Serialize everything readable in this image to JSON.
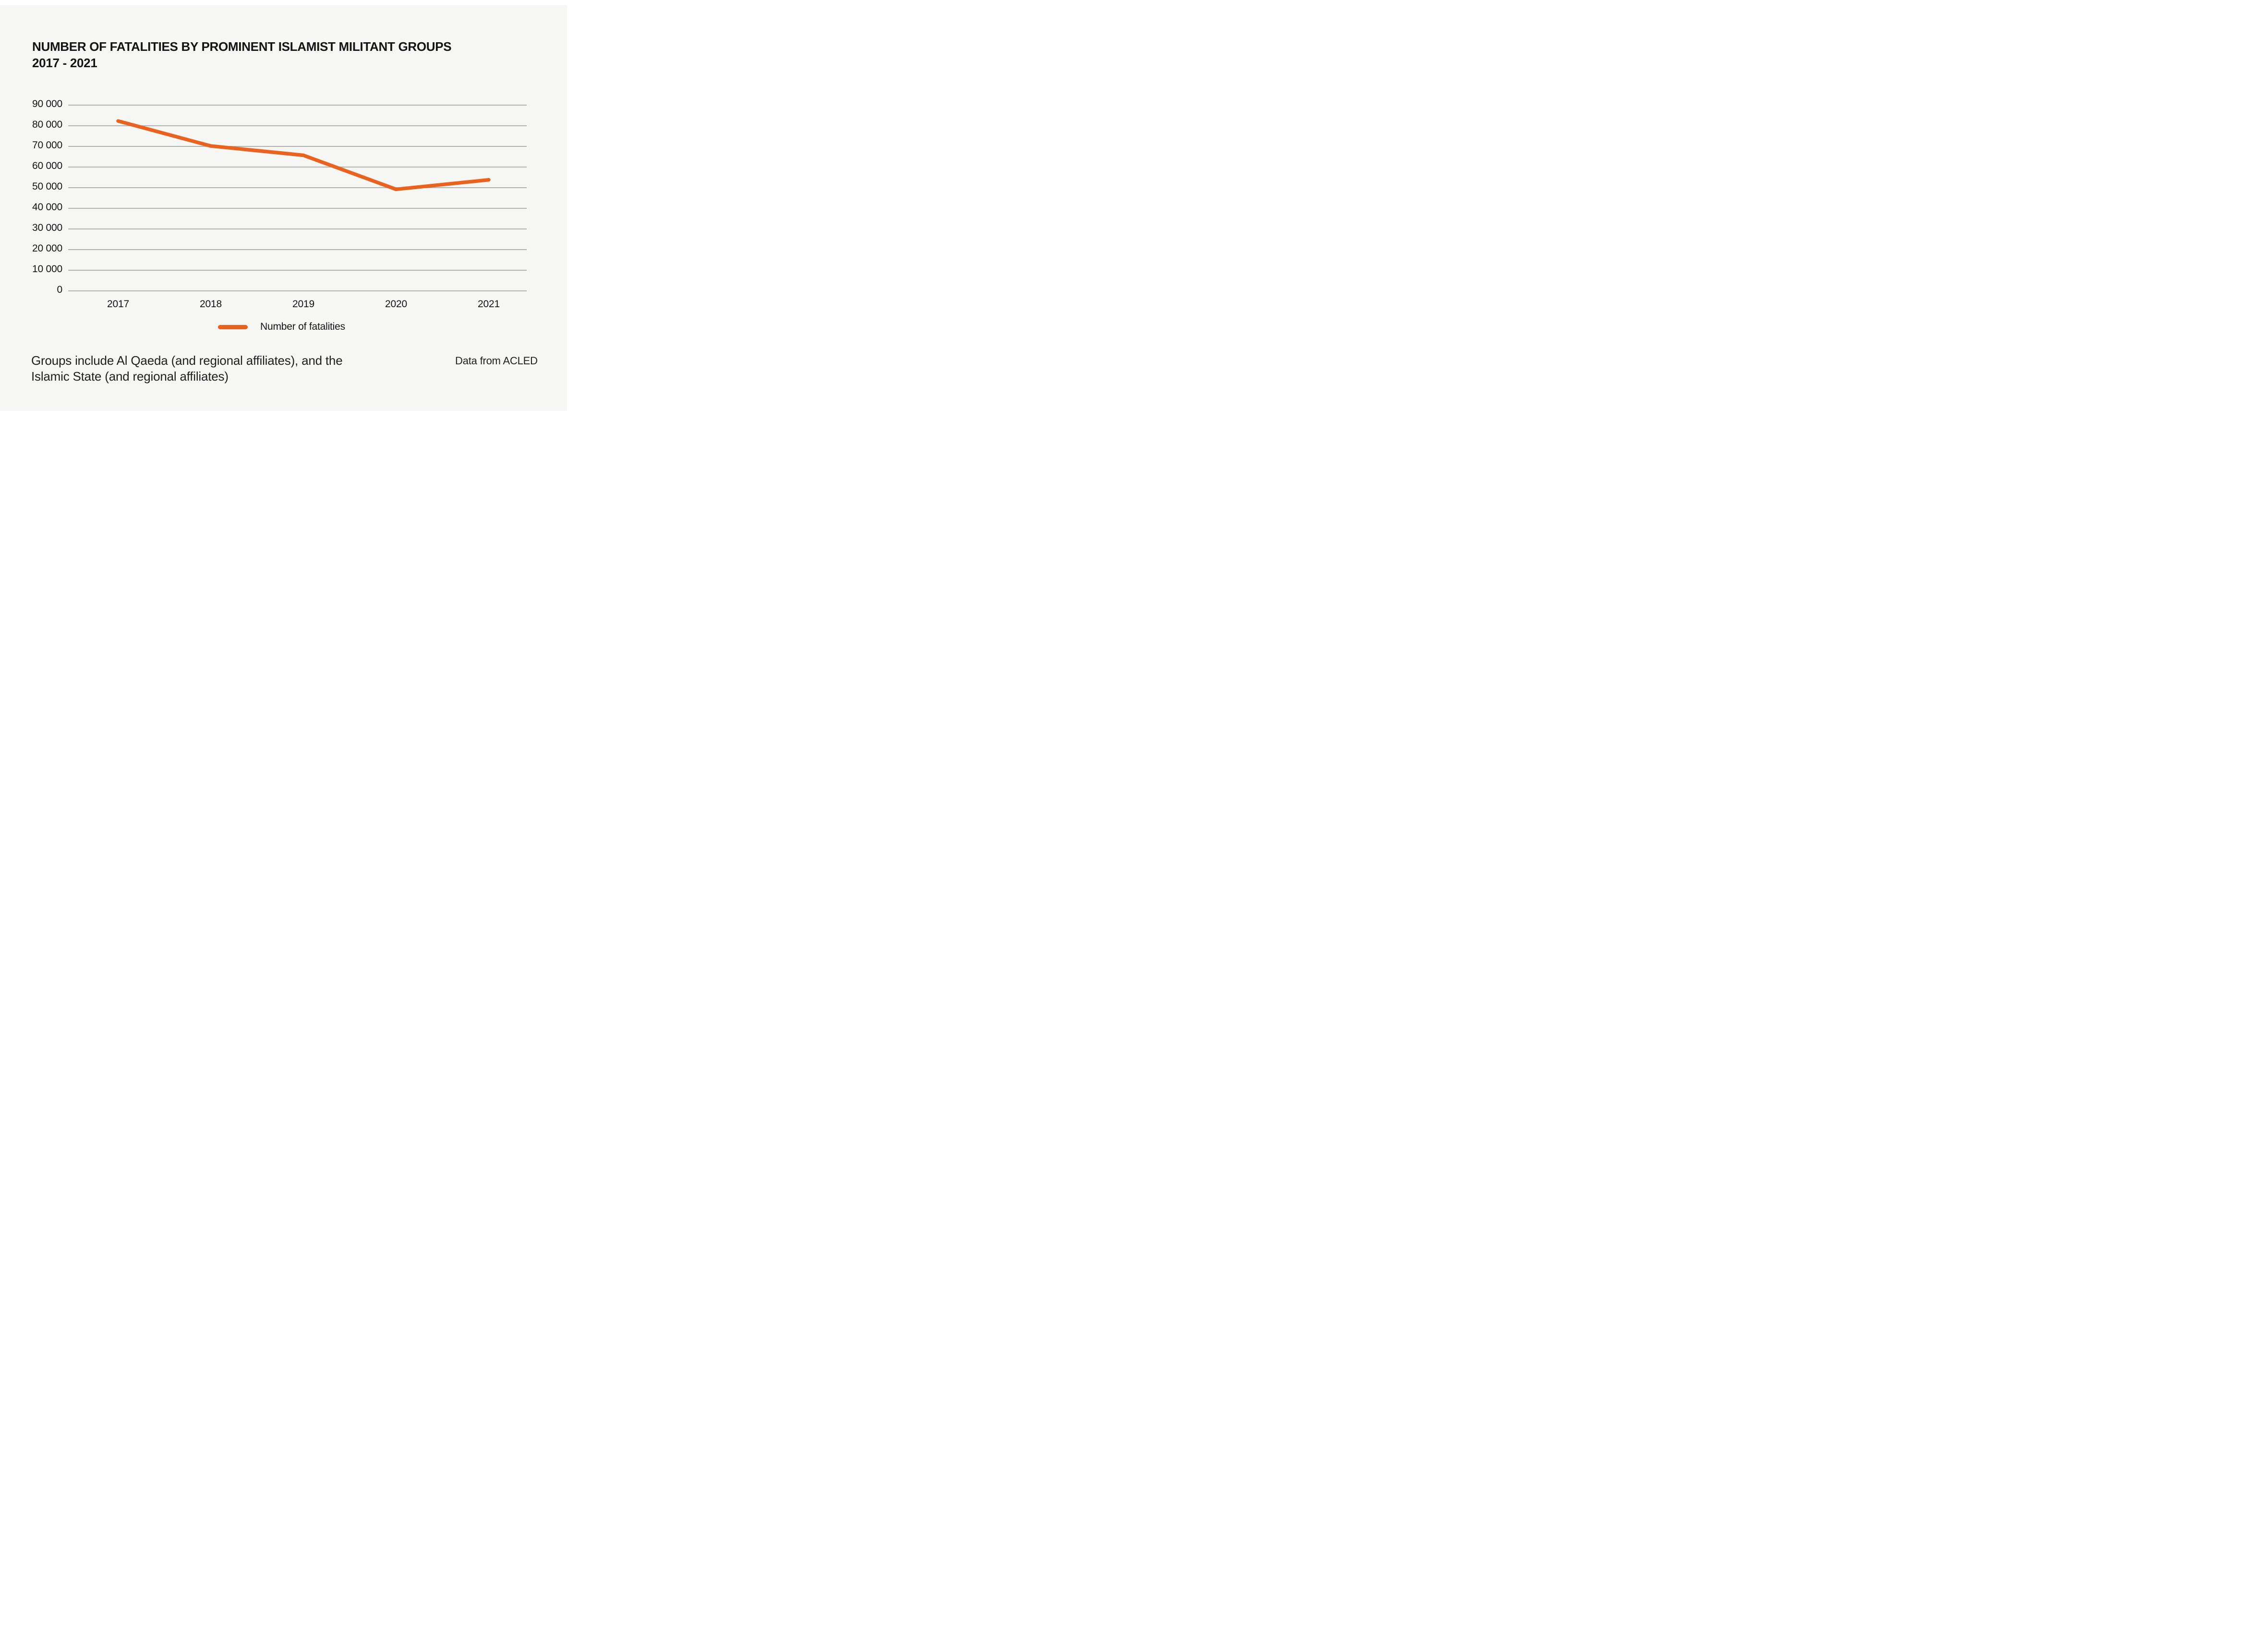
{
  "colors": {
    "accent": "#ea621d",
    "background": "#f6f6f5",
    "gridline": "#b3b3b3",
    "text": "#141414"
  },
  "title": {
    "line1": "NUMBER OF FATALITIES BY PROMINENT ISLAMIST MILITANT GROUPS",
    "line2": "2017 - 2021"
  },
  "legend": {
    "label": "Number of fatalities"
  },
  "footnote": {
    "line1": "Groups include Al Qaeda (and regional affiliates), and the",
    "line2": "Islamic State (and regional affiliates)"
  },
  "source": {
    "text": "Data from ACLED"
  },
  "chart_data": {
    "type": "line",
    "title": "NUMBER OF FATALITIES BY PROMINENT ISLAMIST MILITANT GROUPS 2017 - 2021",
    "categories": [
      "2017",
      "2018",
      "2019",
      "2020",
      "2021"
    ],
    "series": [
      {
        "name": "Number of fatalities",
        "values": [
          82300,
          70200,
          65700,
          49200,
          53800
        ]
      }
    ],
    "xlabel": "",
    "ylabel": "",
    "ylim": [
      0,
      90000
    ],
    "yticks": [
      0,
      10000,
      20000,
      30000,
      40000,
      50000,
      60000,
      70000,
      80000,
      90000
    ],
    "ytick_labels": [
      "0",
      "10 000",
      "20 000",
      "30 000",
      "40 000",
      "50 000",
      "60 000",
      "70 000",
      "80 000",
      "90 000"
    ],
    "grid": "horizontal",
    "legend_position": "bottom",
    "line_color": "#ea621d"
  }
}
